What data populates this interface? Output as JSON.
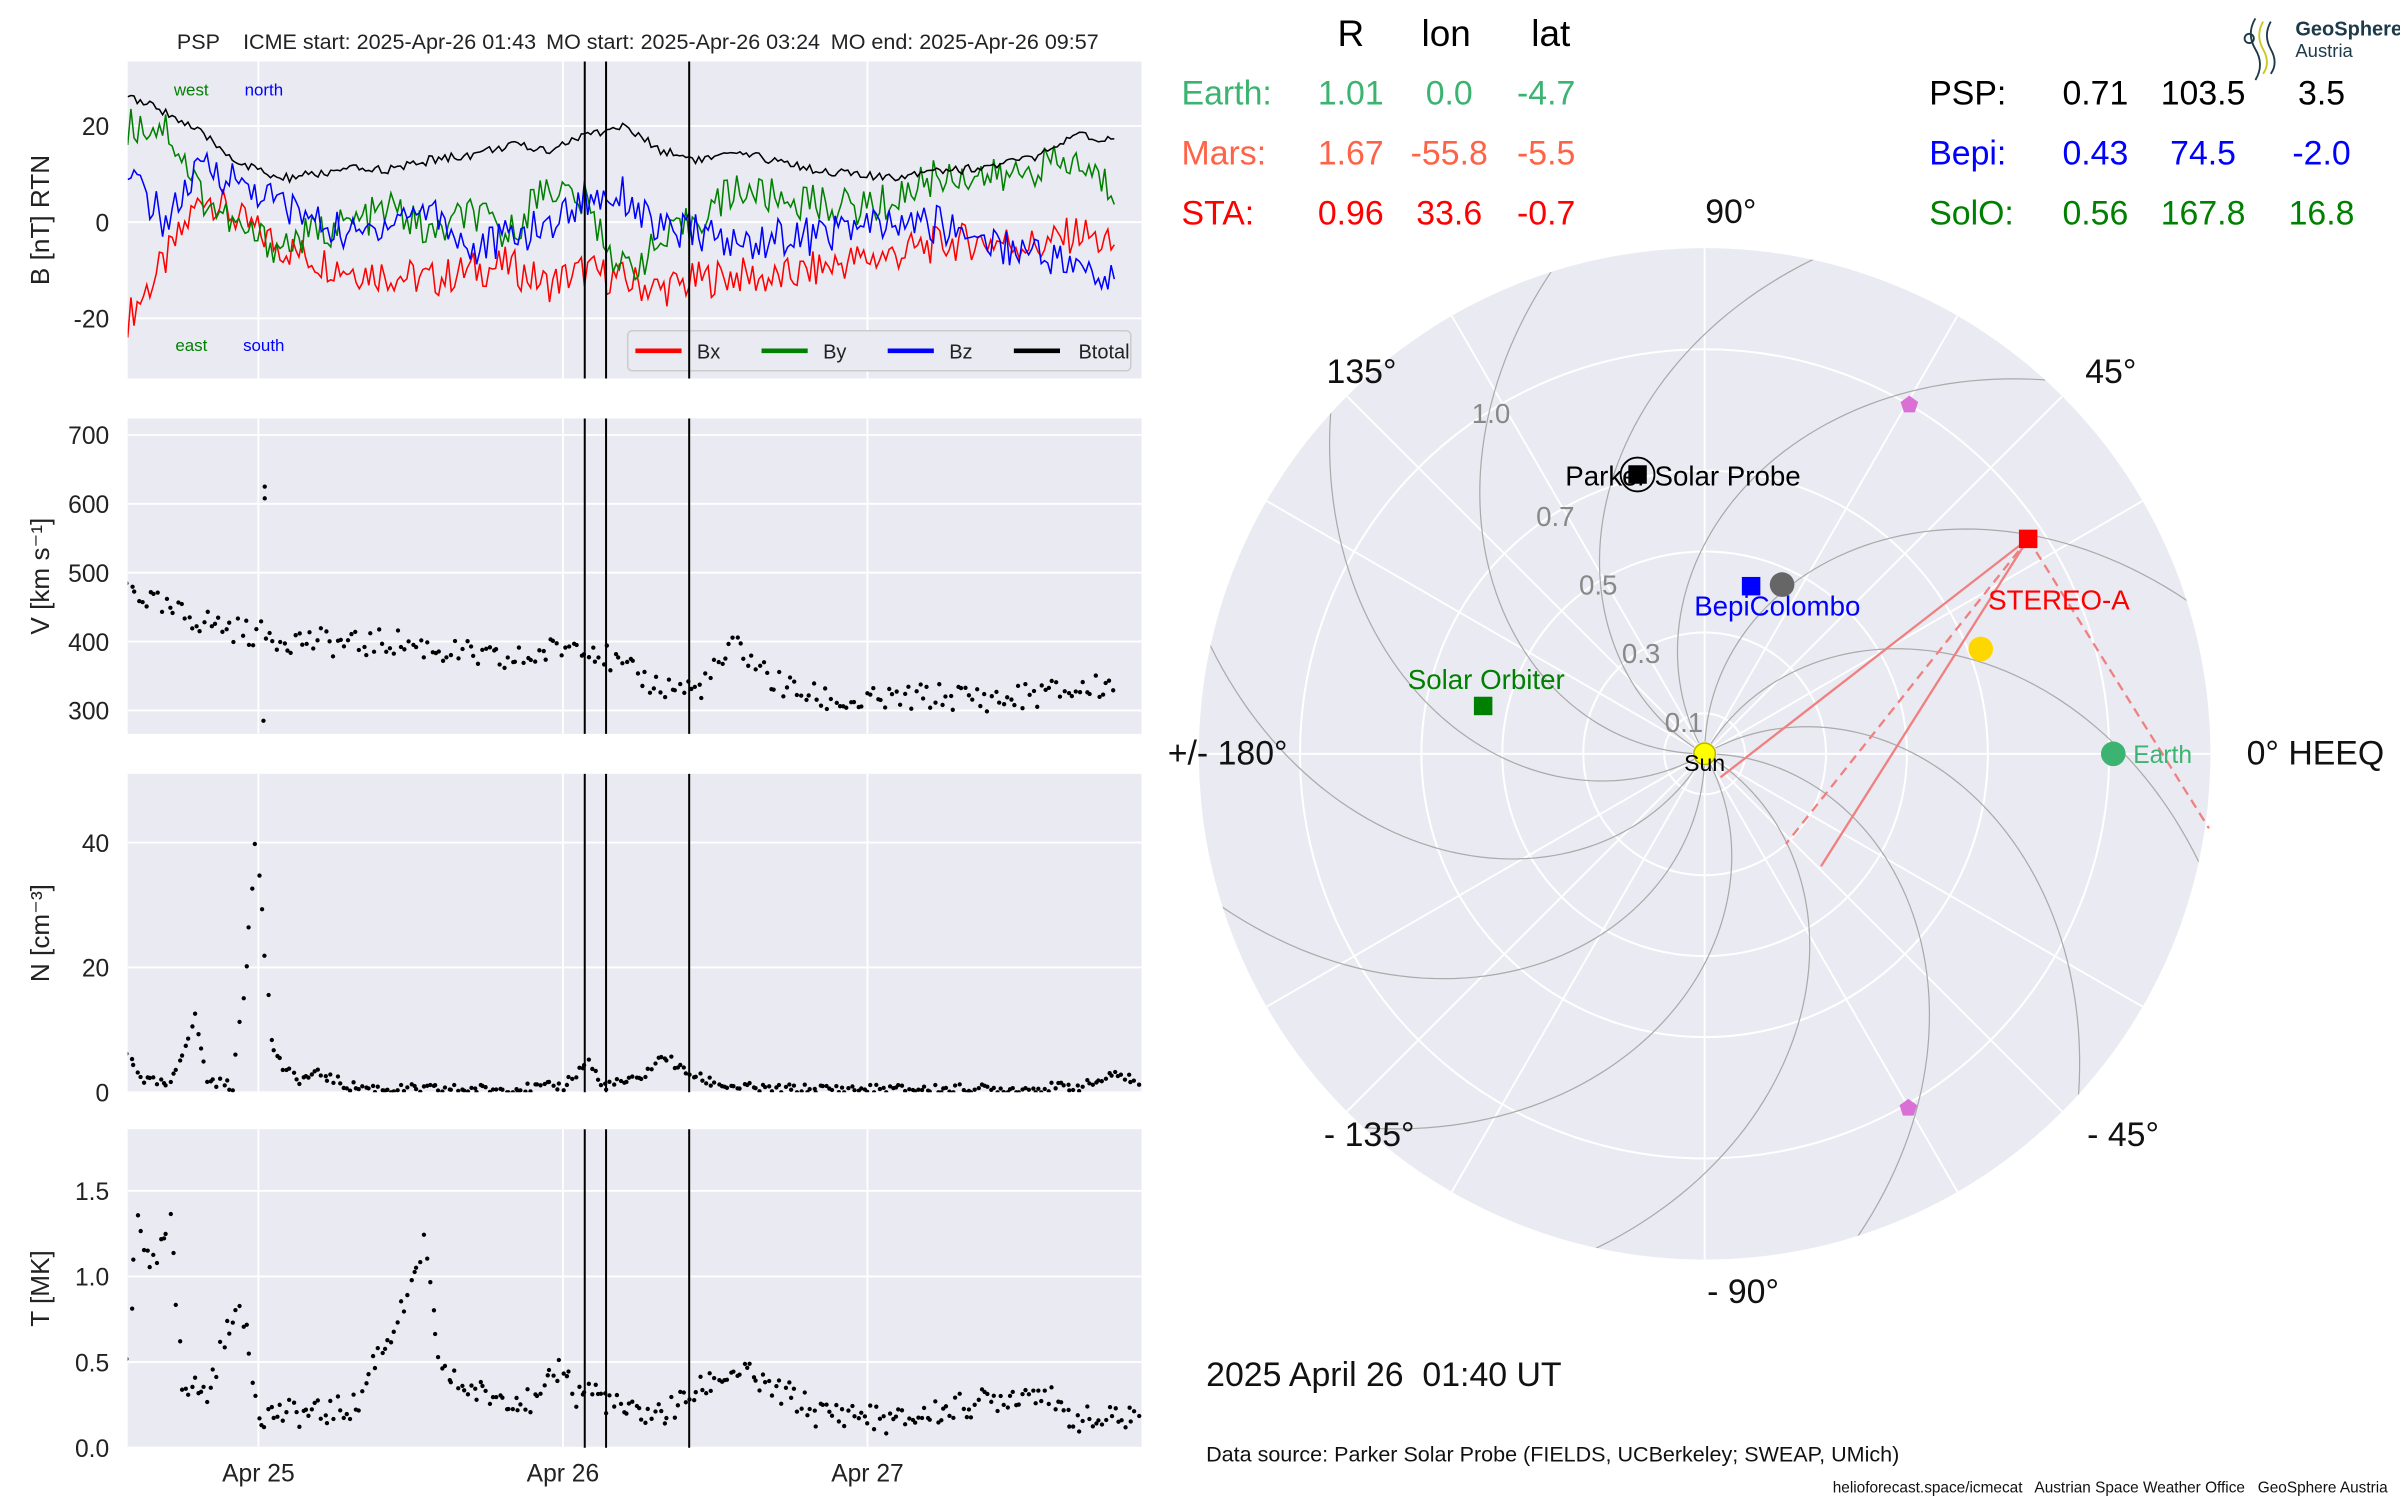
{
  "title": {
    "spacecraft": "PSP",
    "icme_start": "ICME start: 2025-Apr-26 01:43",
    "mo_start": "MO start: 2025-Apr-26 03:24",
    "mo_end": "MO end: 2025-Apr-26 09:57"
  },
  "logo": {
    "line1": "GeoSphere",
    "line2": "Austria"
  },
  "table": {
    "headers": [
      "R",
      "lon",
      "lat"
    ],
    "left": [
      {
        "name": "Earth:",
        "r": "1.01",
        "lon": "0.0",
        "lat": "-4.7",
        "color": "#3cb371"
      },
      {
        "name": "Mars:",
        "r": "1.67",
        "lon": "-55.8",
        "lat": "-5.5",
        "color": "#ff6347"
      },
      {
        "name": "STA:",
        "r": "0.96",
        "lon": "33.6",
        "lat": "-0.7",
        "color": "#ff0000"
      }
    ],
    "right": [
      {
        "name": "PSP:",
        "r": "0.71",
        "lon": "103.5",
        "lat": "3.5",
        "color": "#000000"
      },
      {
        "name": "Bepi:",
        "r": "0.43",
        "lon": "74.5",
        "lat": "-2.0",
        "color": "#0000ff"
      },
      {
        "name": "SolO:",
        "r": "0.56",
        "lon": "167.8",
        "lat": "16.8",
        "color": "#008000"
      }
    ]
  },
  "footer": {
    "datetime": "2025 April 26  01:40 UT",
    "source": "Data source: Parker Solar Probe (FIELDS, UCBerkeley; SWEAP, UMich)",
    "credits": "helioforecast.space/icmecat   Austrian Space Weather Office   GeoSphere Austria"
  },
  "chart_data": [
    {
      "type": "line",
      "name": "magnetic-field",
      "ylabel": "B [nT] RTN",
      "ylim": [
        -32.5,
        33.4
      ],
      "yticks": [
        20,
        0,
        -20
      ],
      "x_unit": "hours since 2025-04-25 00:00",
      "xlim": [
        -10.3,
        69.6
      ],
      "xticks": [
        {
          "t": 0,
          "label": "Apr 25"
        },
        {
          "t": 24,
          "label": "Apr 26"
        },
        {
          "t": 48,
          "label": "Apr 27"
        }
      ],
      "annotations": {
        "west": "west",
        "north": "north",
        "east": "east",
        "south": "south"
      },
      "legend": {
        "position": "lower-right",
        "entries": [
          "Bx",
          "By",
          "Bz",
          "Btotal"
        ]
      },
      "t0": -10.3,
      "dt": 3.0,
      "series": [
        {
          "name": "Bx",
          "color": "#ff0000",
          "values": [
            -20,
            -8,
            6,
            0,
            -5,
            -8,
            -10,
            -11,
            -12,
            -10,
            -9,
            -13,
            -10,
            -12,
            -14,
            -12,
            -11,
            -12,
            -10,
            -8,
            -7,
            -5,
            -4,
            -4,
            -5,
            -2,
            -6
          ]
        },
        {
          "name": "By",
          "color": "#008000",
          "values": [
            20,
            20,
            5,
            -2,
            -5,
            -2,
            0,
            3,
            -3,
            2,
            -3,
            8,
            4,
            -10,
            -5,
            1,
            7,
            5,
            4,
            3,
            4,
            9,
            10,
            9,
            12,
            12,
            6
          ]
        },
        {
          "name": "Bz",
          "color": "#0000ff",
          "values": [
            10,
            0,
            12,
            8,
            4,
            0,
            -3,
            1,
            3,
            -6,
            -3,
            -1,
            5,
            6,
            -2,
            -2,
            -5,
            -3,
            -3,
            -1,
            -1,
            0,
            -2,
            -5,
            -6,
            -10,
            -13
          ]
        },
        {
          "name": "Btotal",
          "color": "#000000",
          "values": [
            26,
            23,
            18,
            12,
            9,
            10,
            11,
            11,
            13,
            14,
            16,
            15,
            18,
            20,
            15,
            13,
            14,
            13,
            11,
            10,
            9,
            11,
            11,
            12,
            14,
            18,
            17
          ]
        }
      ]
    },
    {
      "type": "scatter",
      "name": "speed",
      "ylabel": "V [km s⁻¹]",
      "ylim": [
        266,
        724
      ],
      "yticks": [
        300,
        400,
        500,
        600,
        700
      ],
      "t0": -10.3,
      "dt": 3.0,
      "values": [
        480,
        445,
        430,
        415,
        405,
        400,
        395,
        400,
        390,
        380,
        370,
        385,
        400,
        360,
        335,
        330,
        395,
        340,
        320,
        310,
        315,
        320,
        320,
        315,
        325,
        330,
        340
      ],
      "outliers": [
        [
          0.5,
          625
        ],
        [
          0.5,
          608
        ],
        [
          0.4,
          285
        ]
      ]
    },
    {
      "type": "scatter",
      "name": "density",
      "ylabel": "N [cm⁻³]",
      "ylim": [
        0,
        51
      ],
      "yticks": [
        0,
        20,
        40
      ],
      "points": [
        [
          -10.3,
          6
        ],
        [
          -9,
          2
        ],
        [
          -7,
          1
        ],
        [
          -5,
          12
        ],
        [
          -4,
          2
        ],
        [
          -2,
          1
        ],
        [
          -1,
          20
        ],
        [
          -0.3,
          40
        ],
        [
          0.3,
          30
        ],
        [
          1,
          8
        ],
        [
          2,
          4
        ],
        [
          3,
          2
        ],
        [
          5,
          3
        ],
        [
          7,
          1
        ],
        [
          10,
          0.5
        ],
        [
          15,
          0.5
        ],
        [
          20,
          0.5
        ],
        [
          24,
          1
        ],
        [
          25,
          3
        ],
        [
          26,
          5
        ],
        [
          27,
          1
        ],
        [
          30,
          2
        ],
        [
          32,
          6
        ],
        [
          33,
          4
        ],
        [
          35,
          2
        ],
        [
          37,
          1
        ],
        [
          40,
          0.5
        ],
        [
          45,
          0.5
        ],
        [
          50,
          0.5
        ],
        [
          55,
          0.5
        ],
        [
          60,
          0.5
        ],
        [
          65,
          1
        ],
        [
          68,
          3
        ],
        [
          69.6,
          1
        ]
      ]
    },
    {
      "type": "scatter",
      "name": "temperature",
      "ylabel": "T [MK]",
      "ylim": [
        0,
        1.86
      ],
      "yticks": [
        0.0,
        0.5,
        1.0,
        1.5
      ],
      "points": [
        [
          -10.3,
          0.5
        ],
        [
          -9.5,
          1.4
        ],
        [
          -8.5,
          1.0
        ],
        [
          -7,
          1.3
        ],
        [
          -6,
          0.4
        ],
        [
          -4,
          0.3
        ],
        [
          -2,
          0.8
        ],
        [
          -1,
          0.7
        ],
        [
          0,
          0.2
        ],
        [
          2,
          0.2
        ],
        [
          5,
          0.2
        ],
        [
          8,
          0.25
        ],
        [
          9,
          0.5
        ],
        [
          10,
          0.6
        ],
        [
          12,
          0.9
        ],
        [
          13,
          1.2
        ],
        [
          14,
          0.6
        ],
        [
          15,
          0.4
        ],
        [
          18,
          0.3
        ],
        [
          20,
          0.3
        ],
        [
          22,
          0.25
        ],
        [
          24,
          0.5
        ],
        [
          25,
          0.3
        ],
        [
          26,
          0.35
        ],
        [
          27,
          0.3
        ],
        [
          29,
          0.2
        ],
        [
          32,
          0.2
        ],
        [
          34,
          0.3
        ],
        [
          36,
          0.4
        ],
        [
          38,
          0.45
        ],
        [
          40,
          0.35
        ],
        [
          42,
          0.3
        ],
        [
          44,
          0.2
        ],
        [
          47,
          0.2
        ],
        [
          50,
          0.15
        ],
        [
          53,
          0.2
        ],
        [
          56,
          0.25
        ],
        [
          59,
          0.3
        ],
        [
          62,
          0.35
        ],
        [
          63,
          0.2
        ],
        [
          66,
          0.15
        ],
        [
          69.6,
          0.2
        ]
      ]
    },
    {
      "type": "polar",
      "name": "heeq-positions",
      "vlines_hours": [
        25.72,
        27.4,
        33.95
      ],
      "rlim": [
        0,
        1.25
      ],
      "rings": [
        {
          "r": 0.1,
          "label": "0.1"
        },
        {
          "r": 0.3,
          "label": "0.3"
        },
        {
          "r": 0.5,
          "label": "0.5"
        },
        {
          "r": 0.7,
          "label": "0.7"
        },
        {
          "r": 1.0,
          "label": "1.0"
        }
      ],
      "angle_labels": [
        {
          "deg": 0,
          "label": "0° HEEQ"
        },
        {
          "deg": 45,
          "label": "45°"
        },
        {
          "deg": 90,
          "label": "90°"
        },
        {
          "deg": 135,
          "label": "135°"
        },
        {
          "deg": 180,
          "label": "+/- 180°"
        },
        {
          "deg": -135,
          "label": "- 135°"
        },
        {
          "deg": -90,
          "label": "- 90°"
        },
        {
          "deg": -45,
          "label": "- 45°"
        }
      ],
      "bodies": [
        {
          "name": "sun",
          "label": "Sun",
          "r": 0,
          "lon": 0,
          "color": "#ffff00",
          "shape": "circle",
          "label_color": "#000000"
        },
        {
          "name": "earth",
          "label": "Earth",
          "r": 1.01,
          "lon": 0.0,
          "color": "#3cb371",
          "shape": "circle",
          "label_color": "#3cb371"
        },
        {
          "name": "stereo-a",
          "label": "STEREO-A",
          "r": 0.96,
          "lon": 33.6,
          "color": "#ff0000",
          "shape": "square",
          "label_color": "#ff0000"
        },
        {
          "name": "parker-solar-probe",
          "label": "Parker Solar Probe",
          "r": 0.71,
          "lon": 103.5,
          "color": "#000000",
          "shape": "square",
          "label_color": "#000000"
        },
        {
          "name": "bepicolombo",
          "label": "BepiColombo",
          "r": 0.43,
          "lon": 74.5,
          "color": "#0000ff",
          "shape": "square",
          "label_color": "#0000ff"
        },
        {
          "name": "solar-orbiter",
          "label": "Solar Orbiter",
          "r": 0.56,
          "lon": 167.8,
          "color": "#008000",
          "shape": "square",
          "label_color": "#008000"
        },
        {
          "name": "mercury",
          "label": "",
          "r": 0.46,
          "lon": 65.4,
          "color": "#666666",
          "shape": "circle"
        },
        {
          "name": "venus",
          "label": "",
          "r": 0.73,
          "lon": 20.8,
          "color": "#ffd700",
          "shape": "circle"
        },
        {
          "name": "l4-point",
          "label": "",
          "r": 1.0,
          "lon": 59.6,
          "color": "#da70d6",
          "shape": "pentagon"
        },
        {
          "name": "l5-point",
          "label": "",
          "r": 1.01,
          "lon": -60.1,
          "color": "#da70d6",
          "shape": "pentagon"
        }
      ],
      "sta_lines": [
        {
          "to": [
            0.07,
            -56
          ],
          "dash": false
        },
        {
          "to": [
            0.4,
            -44
          ],
          "dash": false
        },
        {
          "to": [
            0.3,
            -48
          ],
          "dash": true
        },
        {
          "to": [
            1.26,
            -8.4
          ],
          "dash": true
        }
      ],
      "spiral_wind_kms": 400
    }
  ]
}
